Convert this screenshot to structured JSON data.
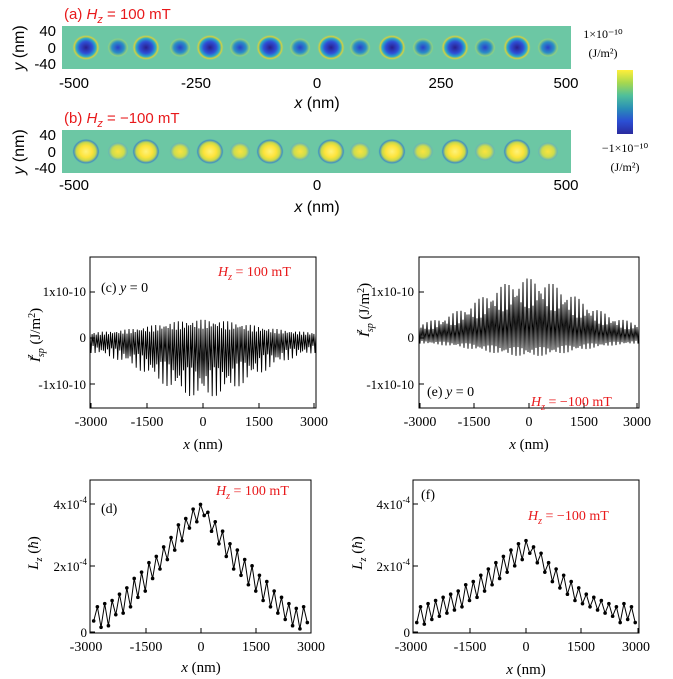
{
  "colors": {
    "red": "#e8191b",
    "axis": "#000000",
    "field": "#6cc7a4"
  },
  "colorbar": {
    "max_label": "1×10⁻¹⁰",
    "min_label": "−1×10⁻¹⁰",
    "unit": "(J/m²)",
    "stops": [
      "#ffef3a",
      "#a6d84f",
      "#4fbf9b",
      "#2a8fb6",
      "#2b4fd4",
      "#2a2a9e"
    ]
  },
  "maps": [
    {
      "label_prefix": "(a) ",
      "field": "H",
      "sub": "z",
      "value": " = 100 mT",
      "ylabel": "y (nm)",
      "yticks": [
        "40",
        "0",
        "-40"
      ],
      "xticks": [
        "-500",
        "-250",
        "0",
        "250",
        "500"
      ],
      "xlabel": "x (nm)",
      "polarity": "negative"
    },
    {
      "label_prefix": "(b) ",
      "field": "H",
      "sub": "z",
      "value": " = −100 mT",
      "ylabel": "y (nm)",
      "yticks": [
        "40",
        "0",
        "-40"
      ],
      "xticks": [
        "-500",
        "0",
        "500"
      ],
      "xlabel": "x (nm)",
      "polarity": "positive"
    }
  ],
  "chart_data": [
    {
      "type": "line",
      "panel": "(c)",
      "annotation": "y = 0",
      "field": "H_z = 100 mT",
      "field_text": " = 100 mT",
      "ylabel": "I_sp^z (J/m²)",
      "xlabel": "x (nm)",
      "xlim": [
        -3000,
        3000
      ],
      "ylim": [
        -1.6e-10,
        1.6e-10
      ],
      "xticks": [
        "-3000",
        "-1500",
        "0",
        "1500",
        "3000"
      ],
      "yticks": [
        "1x10-10",
        "0",
        "-1x10-10"
      ],
      "series": [
        {
          "envelope_upper_peak": 4e-11,
          "envelope_lower_peak": -1.3e-10,
          "baseline_upper": 1e-11,
          "baseline_lower": -2.5e-11
        }
      ]
    },
    {
      "type": "line",
      "panel": "(e)",
      "annotation": "y = 0",
      "field": "H_z = −100 mT",
      "field_text": " = −100 mT",
      "ylabel": "I_sp^z (J/m²)",
      "xlabel": "x (nm)",
      "xlim": [
        -3000,
        3000
      ],
      "ylim": [
        -1.6e-10,
        1.6e-10
      ],
      "xticks": [
        "-3000",
        "-1500",
        "0",
        "1500",
        "3000"
      ],
      "yticks": [
        "1x10-10",
        "0",
        "-1x10-10"
      ],
      "series": [
        {
          "envelope_upper_peak": 1.3e-10,
          "envelope_lower_peak": -4e-11,
          "baseline_upper": 2.5e-11,
          "baseline_lower": -1e-11
        }
      ]
    },
    {
      "type": "line",
      "panel": "(d)",
      "field": "H_z = 100 mT",
      "field_text": " = 100 mT",
      "ylabel": "L_z (ħ)",
      "xlabel": "x (nm)",
      "xlim": [
        -3000,
        3000
      ],
      "ylim": [
        0,
        0.00046
      ],
      "xticks": [
        "-3000",
        "-1500",
        "0",
        "1500",
        "3000"
      ],
      "yticks": [
        "4x10-4",
        "2x10-4",
        "0"
      ],
      "x": [
        -2900,
        -2800,
        -2700,
        -2600,
        -2500,
        -2400,
        -2300,
        -2200,
        -2100,
        -2000,
        -1900,
        -1800,
        -1700,
        -1600,
        -1500,
        -1400,
        -1300,
        -1200,
        -1100,
        -1000,
        -900,
        -800,
        -700,
        -600,
        -500,
        -400,
        -300,
        -200,
        -100,
        0,
        100,
        200,
        300,
        400,
        500,
        600,
        700,
        800,
        900,
        1000,
        1100,
        1200,
        1300,
        1400,
        1500,
        1600,
        1700,
        1800,
        1900,
        2000,
        2100,
        2200,
        2300,
        2400,
        2500,
        2600,
        2700,
        2800,
        2900
      ],
      "values": [
        0.35,
        0.8,
        0.15,
        0.9,
        0.2,
        1.0,
        0.55,
        1.2,
        0.6,
        1.4,
        0.8,
        1.7,
        1.1,
        1.9,
        1.3,
        2.2,
        1.7,
        2.4,
        2.0,
        2.7,
        2.3,
        3.0,
        2.6,
        3.4,
        2.9,
        3.6,
        3.3,
        3.9,
        3.5,
        4.05,
        3.7,
        3.8,
        3.2,
        3.5,
        2.8,
        3.2,
        2.4,
        2.8,
        2.0,
        2.6,
        1.8,
        2.3,
        1.5,
        2.1,
        1.3,
        1.8,
        1.0,
        1.6,
        0.8,
        1.3,
        0.6,
        1.1,
        0.4,
        0.9,
        0.2,
        0.75,
        0.1,
        0.8,
        0.3
      ]
    },
    {
      "type": "line",
      "panel": "(f)",
      "field": "H_z = −100 mT",
      "field_text": " = −100 mT",
      "ylabel": "L_z (ħ)",
      "xlabel": "x (nm)",
      "xlim": [
        -3000,
        3000
      ],
      "ylim": [
        0,
        0.00046
      ],
      "xticks": [
        "-3000",
        "-1500",
        "0",
        "1500",
        "3000"
      ],
      "yticks": [
        "4x10-4",
        "2x10-4",
        "0"
      ],
      "x": [
        -2900,
        -2800,
        -2700,
        -2600,
        -2500,
        -2400,
        -2300,
        -2200,
        -2100,
        -2000,
        -1900,
        -1800,
        -1700,
        -1600,
        -1500,
        -1400,
        -1300,
        -1200,
        -1100,
        -1000,
        -900,
        -800,
        -700,
        -600,
        -500,
        -400,
        -300,
        -200,
        -100,
        0,
        100,
        200,
        300,
        400,
        500,
        600,
        700,
        800,
        900,
        1000,
        1100,
        1200,
        1300,
        1400,
        1500,
        1600,
        1700,
        1800,
        1900,
        2000,
        2100,
        2200,
        2300,
        2400,
        2500,
        2600,
        2700,
        2800,
        2900
      ],
      "values": [
        0.3,
        0.8,
        0.25,
        0.9,
        0.4,
        1.0,
        0.5,
        1.1,
        0.6,
        1.2,
        0.7,
        1.3,
        0.8,
        1.5,
        1.0,
        1.6,
        1.1,
        1.8,
        1.3,
        2.0,
        1.5,
        2.2,
        1.7,
        2.4,
        1.9,
        2.6,
        2.1,
        2.8,
        2.3,
        2.9,
        2.5,
        2.7,
        2.2,
        2.5,
        1.9,
        2.2,
        1.6,
        2.0,
        1.4,
        1.8,
        1.2,
        1.6,
        1.0,
        1.4,
        0.9,
        1.2,
        0.8,
        1.1,
        0.7,
        1.0,
        0.6,
        0.9,
        0.5,
        0.8,
        0.3,
        0.9,
        0.4,
        0.8,
        0.3
      ]
    }
  ]
}
